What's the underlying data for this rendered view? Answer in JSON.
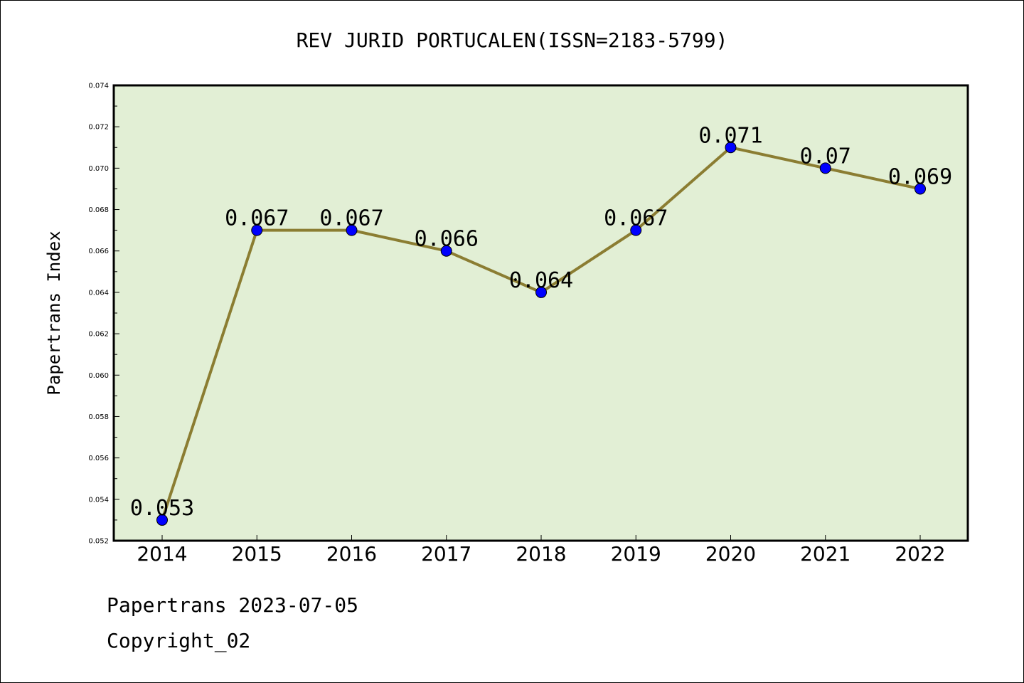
{
  "chart_data": {
    "type": "line",
    "title": "REV JURID PORTUCALEN(ISSN=2183-5799)",
    "xlabel": "",
    "ylabel": "Papertrans Index",
    "categories": [
      "2014",
      "2015",
      "2016",
      "2017",
      "2018",
      "2019",
      "2020",
      "2021",
      "2022"
    ],
    "series": [
      {
        "values": [
          0.053,
          0.067,
          0.067,
          0.066,
          0.064,
          0.067,
          0.071,
          0.07,
          0.069
        ],
        "labels": [
          "0.053",
          "0.067",
          "0.067",
          "0.066",
          "0.064",
          "0.067",
          "0.071",
          "0.07",
          "0.069"
        ]
      }
    ],
    "ylim": [
      0.052,
      0.074
    ],
    "yticks": [
      "0.052",
      "0.054",
      "0.056",
      "0.058",
      "0.060",
      "0.062",
      "0.064",
      "0.066",
      "0.068",
      "0.070",
      "0.072",
      "0.074"
    ],
    "grid": false,
    "legend": "none",
    "colors": {
      "line": "#8b7d32",
      "marker": "#0000ff",
      "plot_background": "#e2efd5",
      "axes": "#000000"
    }
  },
  "footer": {
    "date_line": "Papertrans 2023-07-05",
    "copyright_line": "Copyright_02"
  }
}
